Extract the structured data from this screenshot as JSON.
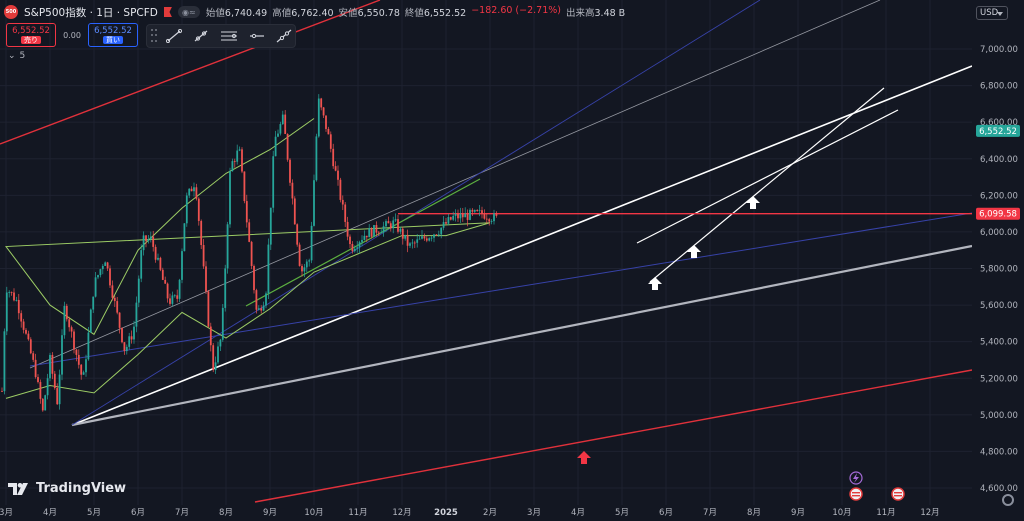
{
  "header": {
    "symbol_badge": "500",
    "title": "S&P500指数 · 1日 · SPCFD",
    "ohlc": [
      {
        "k": "始値",
        "v": "6,740.49"
      },
      {
        "k": "高値",
        "v": "6,762.40"
      },
      {
        "k": "安値",
        "v": "6,550.78"
      },
      {
        "k": "終値",
        "v": "6,552.52"
      }
    ],
    "change": "−182.60 (−2.71%)",
    "volume_label": "出来高",
    "volume_value": "3.48 B"
  },
  "trade": {
    "sell_price": "6,552.52",
    "sell_label": "売り",
    "spread": "0.00",
    "buy_price": "6,552.52",
    "buy_label": "買い"
  },
  "indicators_count": "5",
  "currency": "USD",
  "brand": "TradingView",
  "colors": {
    "background": "#131722",
    "up": "#26a69a",
    "down": "#ef5350",
    "resistance": "#f23645",
    "ma": "#9ccc65"
  },
  "chart_data": {
    "type": "line",
    "title": "S&P500指数 · 1日 · SPCFD",
    "x": [
      "3月",
      "4月",
      "5月",
      "6月",
      "7月",
      "8月",
      "9月",
      "10月",
      "11月",
      "12月",
      "2025",
      "2月",
      "3月",
      "4月",
      "5月",
      "6月",
      "7月",
      "8月",
      "9月",
      "10月",
      "11月",
      "12月"
    ],
    "ylim": [
      4540,
      7110
    ],
    "y_ticks": [
      "7,000.00",
      "6,800.00",
      "6,600.00",
      "6,400.00",
      "6,200.00",
      "6,000.00",
      "5,800.00",
      "5,600.00",
      "5,400.00",
      "5,200.00",
      "5,000.00",
      "4,800.00",
      "4,600.00"
    ],
    "series": [
      {
        "type": "candlestick",
        "points": [
          [
            "3月",
            5130
          ],
          [
            "4月",
            5240
          ],
          [
            "4月",
            5010
          ],
          [
            "5月",
            5180
          ],
          [
            "6月",
            5350
          ],
          [
            "6月",
            5460
          ],
          [
            "7月",
            5620
          ],
          [
            "7月",
            5640
          ],
          [
            "8月",
            5250
          ],
          [
            "8月",
            5430
          ],
          [
            "9月",
            5550
          ],
          [
            "9月",
            5650
          ],
          [
            "10月",
            5780
          ],
          [
            "10月",
            5850
          ],
          [
            "11月",
            5910
          ],
          [
            "11月",
            5990
          ],
          [
            "12月",
            6050
          ],
          [
            "12月",
            5920
          ],
          [
            "2025",
            6010
          ],
          [
            "2025",
            6080
          ],
          [
            "2月",
            6100
          ],
          [
            "2月",
            6070
          ],
          [
            "3月",
            5700
          ],
          [
            "3月",
            5620
          ],
          [
            "4月",
            5300
          ],
          [
            "4月",
            5070
          ],
          [
            "4月",
            5600
          ],
          [
            "5月",
            5710
          ],
          [
            "5月",
            5860
          ],
          [
            "6月",
            5950
          ],
          [
            "6月",
            5960
          ],
          [
            "7月",
            6180
          ],
          [
            "7月",
            6280
          ],
          [
            "8月",
            6360
          ],
          [
            "8月",
            6450
          ],
          [
            "9月",
            6500
          ],
          [
            "9月",
            6620
          ],
          [
            "10月",
            6720
          ],
          [
            "10月",
            6553
          ]
        ]
      },
      {
        "type": "moving-average",
        "points": [
          [
            "3月",
            5090
          ],
          [
            "4月",
            5160
          ],
          [
            "5月",
            5120
          ],
          [
            "6月",
            5330
          ],
          [
            "7月",
            5560
          ],
          [
            "8月",
            5420
          ],
          [
            "9月",
            5580
          ],
          [
            "10月",
            5780
          ],
          [
            "11月",
            5880
          ],
          [
            "12月",
            5980
          ],
          [
            "2025",
            5980
          ],
          [
            "2月",
            6050
          ],
          [
            "3月",
            5920
          ],
          [
            "4月",
            5600
          ],
          [
            "5月",
            5440
          ],
          [
            "6月",
            5900
          ],
          [
            "7月",
            6130
          ],
          [
            "8月",
            6320
          ],
          [
            "9月",
            6450
          ],
          [
            "10月",
            6620
          ]
        ]
      }
    ],
    "price_labels": [
      {
        "value": 6552.52,
        "text": "6,552.52",
        "color": "#26a69a"
      },
      {
        "value": 6099.58,
        "text": "6,099.58",
        "color": "#f23645"
      }
    ],
    "markers": [
      {
        "x": "4月",
        "type": "arrow-up",
        "color": "#f23645"
      },
      {
        "x": "5月",
        "type": "arrow-up",
        "color": "#ffffff"
      },
      {
        "x": "6月",
        "type": "arrow-up",
        "color": "#ffffff"
      },
      {
        "x": "8月",
        "type": "arrow-up",
        "color": "#ffffff"
      }
    ],
    "grid": true
  }
}
